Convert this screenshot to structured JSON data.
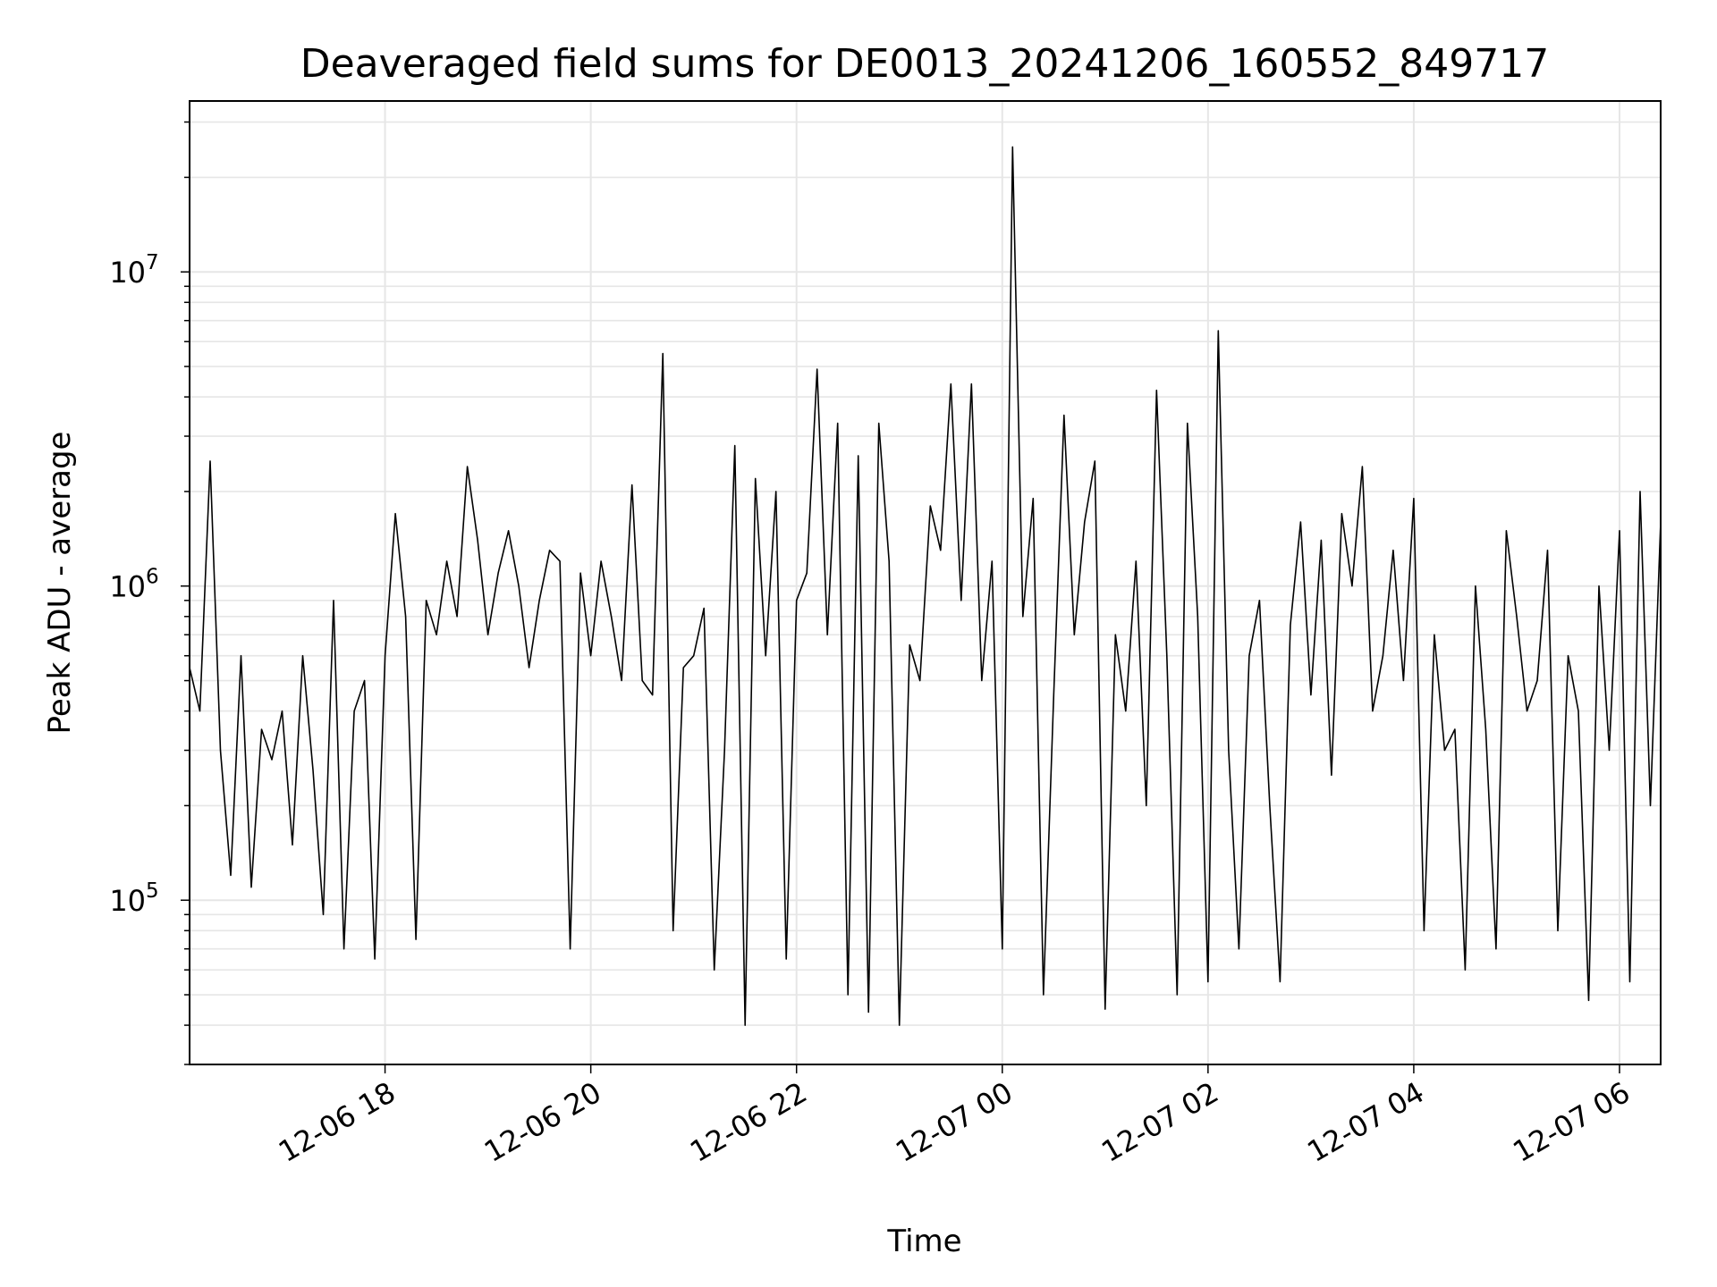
{
  "chart_data": {
    "type": "line",
    "title": "Deaveraged field sums for DE0013_20241206_160552_849717",
    "xlabel": "Time",
    "ylabel": "Peak ADU - average",
    "yscale": "log",
    "xlim": [
      "2024-12-06 16:06",
      "2024-12-07 06:24"
    ],
    "ylim": [
      30000,
      35000000
    ],
    "grid": true,
    "line_color": "#000000",
    "grid_color": "#e6e6e6",
    "x_ticks": [
      {
        "value": "2024-12-06 18:00",
        "label": "12-06 18"
      },
      {
        "value": "2024-12-06 20:00",
        "label": "12-06 20"
      },
      {
        "value": "2024-12-06 22:00",
        "label": "12-06 22"
      },
      {
        "value": "2024-12-07 00:00",
        "label": "12-07 00"
      },
      {
        "value": "2024-12-07 02:00",
        "label": "12-07 02"
      },
      {
        "value": "2024-12-07 04:00",
        "label": "12-07 04"
      },
      {
        "value": "2024-12-07 06:00",
        "label": "12-07 06"
      }
    ],
    "y_ticks": [
      {
        "value": 100000,
        "base": "10",
        "exp": "5"
      },
      {
        "value": 1000000,
        "base": "10",
        "exp": "6"
      },
      {
        "value": 10000000,
        "base": "10",
        "exp": "7"
      }
    ],
    "series": [
      {
        "x": [
          "2024-12-06 16:06",
          "2024-12-06 16:12",
          "2024-12-06 16:18",
          "2024-12-06 16:24",
          "2024-12-06 16:30",
          "2024-12-06 16:36",
          "2024-12-06 16:42",
          "2024-12-06 16:48",
          "2024-12-06 16:54",
          "2024-12-06 17:00",
          "2024-12-06 17:06",
          "2024-12-06 17:12",
          "2024-12-06 17:18",
          "2024-12-06 17:24",
          "2024-12-06 17:30",
          "2024-12-06 17:36",
          "2024-12-06 17:42",
          "2024-12-06 17:48",
          "2024-12-06 17:54",
          "2024-12-06 18:00",
          "2024-12-06 18:06",
          "2024-12-06 18:12",
          "2024-12-06 18:18",
          "2024-12-06 18:24",
          "2024-12-06 18:30",
          "2024-12-06 18:36",
          "2024-12-06 18:42",
          "2024-12-06 18:48",
          "2024-12-06 18:54",
          "2024-12-06 19:00",
          "2024-12-06 19:06",
          "2024-12-06 19:12",
          "2024-12-06 19:18",
          "2024-12-06 19:24",
          "2024-12-06 19:30",
          "2024-12-06 19:36",
          "2024-12-06 19:42",
          "2024-12-06 19:48",
          "2024-12-06 19:54",
          "2024-12-06 20:00",
          "2024-12-06 20:06",
          "2024-12-06 20:12",
          "2024-12-06 20:18",
          "2024-12-06 20:24",
          "2024-12-06 20:30",
          "2024-12-06 20:36",
          "2024-12-06 20:42",
          "2024-12-06 20:48",
          "2024-12-06 20:54",
          "2024-12-06 21:00",
          "2024-12-06 21:06",
          "2024-12-06 21:12",
          "2024-12-06 21:18",
          "2024-12-06 21:24",
          "2024-12-06 21:30",
          "2024-12-06 21:36",
          "2024-12-06 21:42",
          "2024-12-06 21:48",
          "2024-12-06 21:54",
          "2024-12-06 22:00",
          "2024-12-06 22:06",
          "2024-12-06 22:12",
          "2024-12-06 22:18",
          "2024-12-06 22:24",
          "2024-12-06 22:30",
          "2024-12-06 22:36",
          "2024-12-06 22:42",
          "2024-12-06 22:48",
          "2024-12-06 22:54",
          "2024-12-06 23:00",
          "2024-12-06 23:06",
          "2024-12-06 23:12",
          "2024-12-06 23:18",
          "2024-12-06 23:24",
          "2024-12-06 23:30",
          "2024-12-06 23:36",
          "2024-12-06 23:42",
          "2024-12-06 23:48",
          "2024-12-06 23:54",
          "2024-12-07 00:00",
          "2024-12-07 00:06",
          "2024-12-07 00:12",
          "2024-12-07 00:18",
          "2024-12-07 00:24",
          "2024-12-07 00:30",
          "2024-12-07 00:36",
          "2024-12-07 00:42",
          "2024-12-07 00:48",
          "2024-12-07 00:54",
          "2024-12-07 01:00",
          "2024-12-07 01:06",
          "2024-12-07 01:12",
          "2024-12-07 01:18",
          "2024-12-07 01:24",
          "2024-12-07 01:30",
          "2024-12-07 01:36",
          "2024-12-07 01:42",
          "2024-12-07 01:48",
          "2024-12-07 01:54",
          "2024-12-07 02:00",
          "2024-12-07 02:06",
          "2024-12-07 02:12",
          "2024-12-07 02:18",
          "2024-12-07 02:24",
          "2024-12-07 02:30",
          "2024-12-07 02:36",
          "2024-12-07 02:42",
          "2024-12-07 02:48",
          "2024-12-07 02:54",
          "2024-12-07 03:00",
          "2024-12-07 03:06",
          "2024-12-07 03:12",
          "2024-12-07 03:18",
          "2024-12-07 03:24",
          "2024-12-07 03:30",
          "2024-12-07 03:36",
          "2024-12-07 03:42",
          "2024-12-07 03:48",
          "2024-12-07 03:54",
          "2024-12-07 04:00",
          "2024-12-07 04:06",
          "2024-12-07 04:12",
          "2024-12-07 04:18",
          "2024-12-07 04:24",
          "2024-12-07 04:30",
          "2024-12-07 04:36",
          "2024-12-07 04:42",
          "2024-12-07 04:48",
          "2024-12-07 04:54",
          "2024-12-07 05:00",
          "2024-12-07 05:06",
          "2024-12-07 05:12",
          "2024-12-07 05:18",
          "2024-12-07 05:24",
          "2024-12-07 05:30",
          "2024-12-07 05:36",
          "2024-12-07 05:42",
          "2024-12-07 05:48",
          "2024-12-07 05:54",
          "2024-12-07 06:00",
          "2024-12-07 06:06",
          "2024-12-07 06:12",
          "2024-12-07 06:18",
          "2024-12-07 06:24"
        ],
        "y": [
          550000,
          400000,
          2500000,
          300000,
          120000,
          600000,
          110000,
          350000,
          280000,
          400000,
          150000,
          600000,
          260000,
          90000,
          900000,
          70000,
          400000,
          500000,
          65000,
          600000,
          1700000,
          800000,
          75000,
          900000,
          700000,
          1200000,
          800000,
          2400000,
          1400000,
          700000,
          1100000,
          1500000,
          1000000,
          550000,
          900000,
          1300000,
          1200000,
          70000,
          1100000,
          600000,
          1200000,
          800000,
          500000,
          2100000,
          500000,
          450000,
          5500000,
          80000,
          550000,
          600000,
          850000,
          60000,
          300000,
          2800000,
          40000,
          2200000,
          600000,
          2000000,
          65000,
          900000,
          1100000,
          4900000,
          700000,
          3300000,
          50000,
          2600000,
          44000,
          3300000,
          1200000,
          40000,
          650000,
          500000,
          1800000,
          1300000,
          4400000,
          900000,
          4400000,
          500000,
          1200000,
          70000,
          25000000,
          800000,
          1900000,
          50000,
          450000,
          3500000,
          700000,
          1600000,
          2500000,
          45000,
          700000,
          400000,
          1200000,
          200000,
          4200000,
          600000,
          50000,
          3300000,
          800000,
          55000,
          6500000,
          300000,
          70000,
          600000,
          900000,
          200000,
          55000,
          750000,
          1600000,
          450000,
          1400000,
          250000,
          1700000,
          1000000,
          2400000,
          400000,
          600000,
          1300000,
          500000,
          1900000,
          80000,
          700000,
          300000,
          350000,
          60000,
          1000000,
          350000,
          70000,
          1500000,
          800000,
          400000,
          500000,
          1300000,
          80000,
          600000,
          400000,
          48000,
          1000000,
          300000,
          1500000,
          55000,
          2000000,
          200000,
          1600000
        ]
      }
    ]
  }
}
